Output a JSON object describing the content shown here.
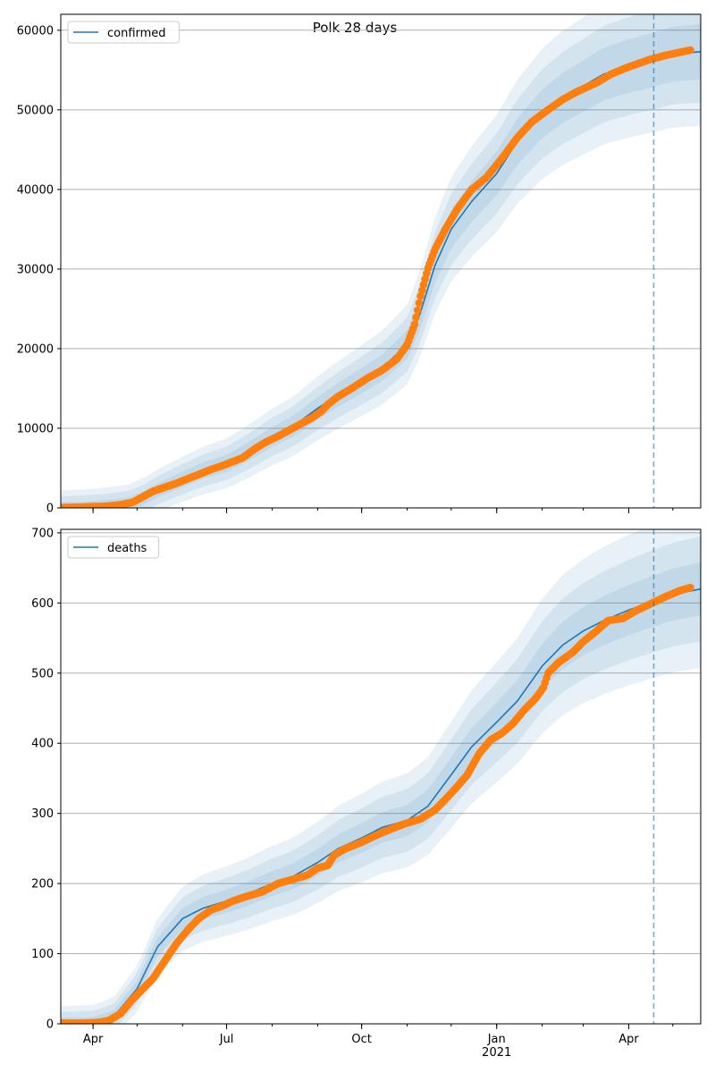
{
  "figure": {
    "title": "Polk 28 days"
  },
  "chart_data": [
    {
      "type": "line",
      "title": "Polk 28 days",
      "ylim": [
        0,
        62000
      ],
      "yticks": [
        0,
        10000,
        20000,
        30000,
        40000,
        50000,
        60000
      ],
      "xlim": [
        "2020-03-10",
        "2021-05-20"
      ],
      "xticks": [
        {
          "date": "2020-04-01",
          "label": "Apr"
        },
        {
          "date": "2020-07-01",
          "label": "Jul"
        },
        {
          "date": "2020-10-01",
          "label": "Oct"
        },
        {
          "date": "2021-01-01",
          "label": "Jan"
        },
        {
          "date": "2021-04-01",
          "label": "Apr"
        }
      ],
      "year_label": "2021",
      "grid": "horizontal",
      "forecast_start": "2021-04-18",
      "legend": {
        "position": "top-left",
        "entries": [
          "confirmed"
        ]
      },
      "series": [
        {
          "name": "confirmed",
          "color": "#1f77b4",
          "points": [
            [
              "2020-03-10",
              0
            ],
            [
              "2020-03-25",
              30
            ],
            [
              "2020-04-10",
              200
            ],
            [
              "2020-04-25",
              500
            ],
            [
              "2020-05-05",
              1200
            ],
            [
              "2020-05-15",
              2200
            ],
            [
              "2020-06-01",
              3600
            ],
            [
              "2020-06-15",
              4700
            ],
            [
              "2020-07-01",
              5600
            ],
            [
              "2020-07-15",
              7000
            ],
            [
              "2020-08-01",
              8900
            ],
            [
              "2020-08-15",
              10200
            ],
            [
              "2020-09-01",
              12500
            ],
            [
              "2020-09-15",
              14200
            ],
            [
              "2020-10-01",
              16000
            ],
            [
              "2020-10-15",
              17600
            ],
            [
              "2020-11-01",
              20500
            ],
            [
              "2020-11-10",
              24500
            ],
            [
              "2020-11-20",
              30500
            ],
            [
              "2020-12-01",
              35000
            ],
            [
              "2020-12-15",
              38500
            ],
            [
              "2021-01-01",
              42000
            ],
            [
              "2021-01-15",
              46000
            ],
            [
              "2021-02-01",
              49500
            ],
            [
              "2021-02-15",
              51500
            ],
            [
              "2021-03-01",
              53000
            ],
            [
              "2021-03-15",
              54500
            ],
            [
              "2021-04-01",
              55500
            ],
            [
              "2021-04-18",
              56300
            ],
            [
              "2021-05-01",
              57000
            ],
            [
              "2021-05-20",
              57300
            ]
          ],
          "band": {
            "lower_pct": [
              0.04,
              0.07,
              0.1
            ],
            "growth": 0.6
          }
        },
        {
          "name": "observed",
          "color": "#ff7f0e",
          "kind": "scatter",
          "points": [
            [
              "2020-03-10",
              50
            ],
            [
              "2020-03-20",
              80
            ],
            [
              "2020-04-01",
              150
            ],
            [
              "2020-04-10",
              200
            ],
            [
              "2020-04-20",
              400
            ],
            [
              "2020-04-28",
              700
            ],
            [
              "2020-05-05",
              1400
            ],
            [
              "2020-05-12",
              2100
            ],
            [
              "2020-05-20",
              2600
            ],
            [
              "2020-05-28",
              3100
            ],
            [
              "2020-06-05",
              3700
            ],
            [
              "2020-06-12",
              4200
            ],
            [
              "2020-06-20",
              4800
            ],
            [
              "2020-06-28",
              5300
            ],
            [
              "2020-07-05",
              5800
            ],
            [
              "2020-07-12",
              6300
            ],
            [
              "2020-07-20",
              7400
            ],
            [
              "2020-07-28",
              8300
            ],
            [
              "2020-08-05",
              9000
            ],
            [
              "2020-08-12",
              9700
            ],
            [
              "2020-08-20",
              10500
            ],
            [
              "2020-08-28",
              11300
            ],
            [
              "2020-09-04",
              12200
            ],
            [
              "2020-09-08",
              13000
            ],
            [
              "2020-09-15",
              14000
            ],
            [
              "2020-09-25",
              15100
            ],
            [
              "2020-10-05",
              16300
            ],
            [
              "2020-10-15",
              17300
            ],
            [
              "2020-10-25",
              18700
            ],
            [
              "2020-11-01",
              20500
            ],
            [
              "2020-11-06",
              23000
            ],
            [
              "2020-11-10",
              26500
            ],
            [
              "2020-11-15",
              30000
            ],
            [
              "2020-11-20",
              32500
            ],
            [
              "2020-11-27",
              35000
            ],
            [
              "2020-12-05",
              37500
            ],
            [
              "2020-12-15",
              40000
            ],
            [
              "2020-12-25",
              41500
            ],
            [
              "2021-01-05",
              44000
            ],
            [
              "2021-01-15",
              46500
            ],
            [
              "2021-01-25",
              48500
            ],
            [
              "2021-02-05",
              50000
            ],
            [
              "2021-02-15",
              51300
            ],
            [
              "2021-02-25",
              52300
            ],
            [
              "2021-03-10",
              53400
            ],
            [
              "2021-03-20",
              54500
            ],
            [
              "2021-04-01",
              55400
            ],
            [
              "2021-04-15",
              56300
            ],
            [
              "2021-04-25",
              56800
            ],
            [
              "2021-05-05",
              57200
            ],
            [
              "2021-05-13",
              57500
            ]
          ]
        }
      ]
    },
    {
      "type": "line",
      "title": "",
      "ylim": [
        0,
        705
      ],
      "yticks": [
        0,
        100,
        200,
        300,
        400,
        500,
        600,
        700
      ],
      "xlim": [
        "2020-03-10",
        "2021-05-20"
      ],
      "xticks": [
        {
          "date": "2020-04-01",
          "label": "Apr"
        },
        {
          "date": "2020-07-01",
          "label": "Jul"
        },
        {
          "date": "2020-10-01",
          "label": "Oct"
        },
        {
          "date": "2021-01-01",
          "label": "Jan"
        },
        {
          "date": "2021-04-01",
          "label": "Apr"
        }
      ],
      "year_label": "2021",
      "grid": "horizontal",
      "forecast_start": "2021-04-18",
      "legend": {
        "position": "top-left",
        "entries": [
          "deaths"
        ]
      },
      "series": [
        {
          "name": "deaths",
          "color": "#1f77b4",
          "points": [
            [
              "2020-03-10",
              0
            ],
            [
              "2020-04-01",
              1
            ],
            [
              "2020-04-15",
              10
            ],
            [
              "2020-05-01",
              50
            ],
            [
              "2020-05-15",
              110
            ],
            [
              "2020-06-01",
              150
            ],
            [
              "2020-06-15",
              165
            ],
            [
              "2020-07-01",
              175
            ],
            [
              "2020-07-15",
              185
            ],
            [
              "2020-08-01",
              200
            ],
            [
              "2020-08-15",
              210
            ],
            [
              "2020-09-01",
              230
            ],
            [
              "2020-09-15",
              250
            ],
            [
              "2020-10-01",
              265
            ],
            [
              "2020-10-15",
              280
            ],
            [
              "2020-11-01",
              290
            ],
            [
              "2020-11-15",
              310
            ],
            [
              "2020-12-01",
              355
            ],
            [
              "2020-12-15",
              395
            ],
            [
              "2021-01-01",
              430
            ],
            [
              "2021-01-15",
              460
            ],
            [
              "2021-02-01",
              510
            ],
            [
              "2021-02-15",
              540
            ],
            [
              "2021-03-01",
              560
            ],
            [
              "2021-03-15",
              575
            ],
            [
              "2021-04-01",
              590
            ],
            [
              "2021-04-18",
              603
            ],
            [
              "2021-05-01",
              612
            ],
            [
              "2021-05-20",
              620
            ]
          ],
          "band": {
            "lower_pct": [
              0.04,
              0.08,
              0.12
            ],
            "growth": 0.5
          }
        },
        {
          "name": "observed",
          "color": "#ff7f0e",
          "kind": "scatter",
          "points": [
            [
              "2020-03-10",
              1
            ],
            [
              "2020-03-25",
              1
            ],
            [
              "2020-04-05",
              2
            ],
            [
              "2020-04-12",
              5
            ],
            [
              "2020-04-20",
              15
            ],
            [
              "2020-04-28",
              35
            ],
            [
              "2020-05-05",
              50
            ],
            [
              "2020-05-12",
              65
            ],
            [
              "2020-05-20",
              90
            ],
            [
              "2020-05-28",
              115
            ],
            [
              "2020-06-05",
              135
            ],
            [
              "2020-06-12",
              150
            ],
            [
              "2020-06-20",
              162
            ],
            [
              "2020-06-28",
              168
            ],
            [
              "2020-07-05",
              175
            ],
            [
              "2020-07-15",
              182
            ],
            [
              "2020-07-25",
              188
            ],
            [
              "2020-08-05",
              200
            ],
            [
              "2020-08-15",
              206
            ],
            [
              "2020-08-25",
              212
            ],
            [
              "2020-09-01",
              222
            ],
            [
              "2020-09-08",
              226
            ],
            [
              "2020-09-12",
              240
            ],
            [
              "2020-09-20",
              250
            ],
            [
              "2020-09-30",
              258
            ],
            [
              "2020-10-10",
              268
            ],
            [
              "2020-10-20",
              277
            ],
            [
              "2020-10-30",
              285
            ],
            [
              "2020-11-10",
              292
            ],
            [
              "2020-11-20",
              305
            ],
            [
              "2020-11-28",
              322
            ],
            [
              "2020-12-05",
              338
            ],
            [
              "2020-12-12",
              355
            ],
            [
              "2020-12-20",
              385
            ],
            [
              "2020-12-28",
              405
            ],
            [
              "2021-01-05",
              415
            ],
            [
              "2021-01-12",
              428
            ],
            [
              "2021-01-20",
              448
            ],
            [
              "2021-01-28",
              465
            ],
            [
              "2021-02-02",
              480
            ],
            [
              "2021-02-05",
              500
            ],
            [
              "2021-02-12",
              515
            ],
            [
              "2021-02-22",
              530
            ],
            [
              "2021-03-01",
              545
            ],
            [
              "2021-03-10",
              560
            ],
            [
              "2021-03-18",
              575
            ],
            [
              "2021-03-28",
              578
            ],
            [
              "2021-04-05",
              588
            ],
            [
              "2021-04-15",
              598
            ],
            [
              "2021-04-25",
              608
            ],
            [
              "2021-05-05",
              617
            ],
            [
              "2021-05-13",
              622
            ]
          ]
        }
      ]
    }
  ]
}
